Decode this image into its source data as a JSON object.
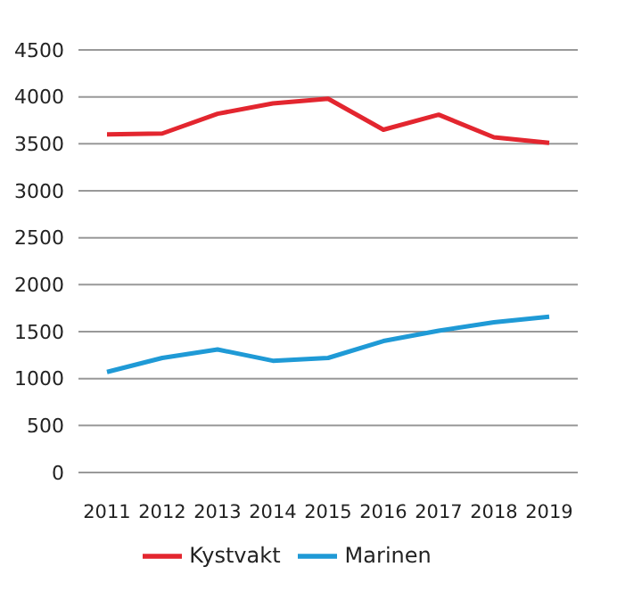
{
  "chart_data": {
    "type": "line",
    "categories": [
      "2011",
      "2012",
      "2013",
      "2014",
      "2015",
      "2016",
      "2017",
      "2018",
      "2019"
    ],
    "series": [
      {
        "name": "Kystvakt",
        "color": "#e3262f",
        "values": [
          3600,
          3610,
          3820,
          3930,
          3980,
          3650,
          3810,
          3570,
          3510
        ]
      },
      {
        "name": "Marinen",
        "color": "#1f9ad6",
        "values": [
          1070,
          1220,
          1310,
          1190,
          1220,
          1400,
          1510,
          1600,
          1660
        ]
      }
    ],
    "ylim": [
      0,
      4500
    ],
    "yticks": [
      0,
      500,
      1000,
      1500,
      2000,
      2500,
      3000,
      3500,
      4000,
      4500
    ],
    "grid": "y",
    "legend": "bottom",
    "marker": "none"
  }
}
